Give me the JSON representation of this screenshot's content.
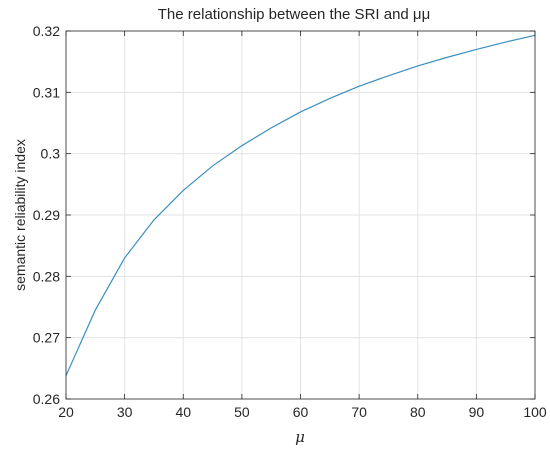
{
  "chart_data": {
    "type": "line",
    "title": "The relationship between the SRI and μμ",
    "xlabel": "μ",
    "ylabel": "semantic reliability index",
    "xlim": [
      20,
      100
    ],
    "ylim": [
      0.26,
      0.32
    ],
    "x_ticks": [
      20,
      30,
      40,
      50,
      60,
      70,
      80,
      90,
      100
    ],
    "x_tick_labels": [
      "20",
      "30",
      "40",
      "50",
      "60",
      "70",
      "80",
      "90",
      "100"
    ],
    "y_ticks": [
      0.26,
      0.27,
      0.28,
      0.29,
      0.3,
      0.31,
      0.32
    ],
    "y_tick_labels": [
      "0.26",
      "0.27",
      "0.28",
      "0.29",
      "0.3",
      "0.31",
      "0.32"
    ],
    "grid": true,
    "series": [
      {
        "color": "#3a8fc0",
        "x": [
          20,
          25,
          30,
          35,
          40,
          45,
          50,
          55,
          60,
          65,
          70,
          75,
          80,
          85,
          90,
          95,
          100
        ],
        "y": [
          0.2638,
          0.2745,
          0.283,
          0.2892,
          0.294,
          0.298,
          0.3013,
          0.3042,
          0.3068,
          0.309,
          0.311,
          0.3127,
          0.3143,
          0.3157,
          0.317,
          0.3182,
          0.3193
        ]
      }
    ]
  }
}
